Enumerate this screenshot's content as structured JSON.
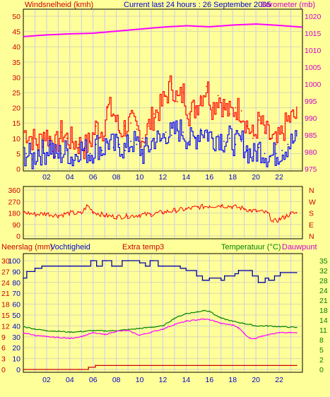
{
  "header": {
    "left_label": "Windsnelheid (kmh)",
    "center_label": "Current last 24 hours : 26 September 2005",
    "right_label": "Barometer (mb)"
  },
  "colors": {
    "background": "#ffff99",
    "plot_bg": "#ffff99",
    "grid_v": "#c8c8ff",
    "grid_h": "#d8d8b0",
    "wind_avg": "#0000ff",
    "wind_gust": "#ff0000",
    "barometer": "#ff00ff",
    "direction": "#ff0000",
    "humidity": "#0000aa",
    "temperature": "#008000",
    "dewpoint": "#ff00ff",
    "rain": "#cc0000",
    "text_red": "#cc0000",
    "text_green": "#008000",
    "text_purple": "#cc00cc",
    "text_blue": "#0000cc"
  },
  "hour_ticks": [
    "02",
    "04",
    "06",
    "08",
    "10",
    "12",
    "14",
    "16",
    "18",
    "20",
    "22"
  ],
  "chart_data": [
    {
      "type": "bar",
      "name": "wind",
      "y_left_ticks": [
        "0",
        "5",
        "10",
        "15",
        "20",
        "25",
        "30",
        "35",
        "40",
        "45",
        "50"
      ],
      "y_right_ticks": [
        "975",
        "980",
        "985",
        "990",
        "995",
        "1000",
        "1005",
        "1010",
        "1015",
        "1020"
      ],
      "xlim": [
        0,
        24
      ],
      "ylim_left": [
        0,
        50
      ],
      "ylim_right": [
        975,
        1020
      ],
      "series": [
        {
          "name": "Windsnelheid (kmh)",
          "kind": "gust",
          "x": [
            0.25,
            0.75,
            1.25,
            1.75,
            2.25,
            2.75,
            3.25,
            3.75,
            4.25,
            4.75,
            5.25,
            5.75,
            6.25,
            6.75,
            7.25,
            7.75,
            8.25,
            8.75,
            9.25,
            9.75,
            10.25,
            10.75,
            11.25,
            11.75,
            12.25,
            12.75,
            13.25,
            13.75,
            14.25,
            14.75,
            15.25,
            15.75,
            16.25,
            16.75,
            17.25,
            17.75,
            18.25,
            18.75,
            19.25,
            19.75,
            20.25,
            20.75,
            21.25,
            21.75,
            22.25,
            22.75,
            23.25
          ],
          "values": [
            12,
            10,
            8,
            12,
            10,
            7,
            12,
            10,
            9,
            8,
            7,
            9,
            14,
            12,
            20,
            18,
            12,
            14,
            15,
            13,
            10,
            14,
            18,
            20,
            24,
            28,
            22,
            25,
            18,
            20,
            24,
            27,
            20,
            24,
            20,
            18,
            20,
            19,
            14,
            10,
            16,
            12,
            10,
            8,
            12,
            16,
            17
          ]
        },
        {
          "name": "Windsnelheid (kmh)",
          "kind": "avg",
          "x": [
            0.25,
            0.75,
            1.25,
            1.75,
            2.25,
            2.75,
            3.25,
            3.75,
            4.25,
            4.75,
            5.25,
            5.75,
            6.25,
            6.75,
            7.25,
            7.75,
            8.25,
            8.75,
            9.25,
            9.75,
            10.25,
            10.75,
            11.25,
            11.75,
            12.25,
            12.75,
            13.25,
            13.75,
            14.25,
            14.75,
            15.25,
            15.75,
            16.25,
            16.75,
            17.25,
            17.75,
            18.25,
            18.75,
            19.25,
            19.75,
            20.25,
            20.75,
            21.25,
            21.75,
            22.25,
            22.75,
            23.25
          ],
          "values": [
            5,
            3,
            6,
            5,
            8,
            4,
            5,
            6,
            3,
            7,
            6,
            5,
            8,
            6,
            9,
            7,
            8,
            6,
            9,
            8,
            5,
            7,
            10,
            9,
            12,
            11,
            13,
            12,
            9,
            10,
            13,
            12,
            10,
            11,
            9,
            10,
            8,
            9,
            6,
            4,
            7,
            5,
            4,
            5,
            6,
            8,
            9
          ]
        },
        {
          "name": "Barometer (mb)",
          "kind": "pressure",
          "x": [
            0,
            2,
            4,
            6,
            8,
            10,
            12,
            14,
            16,
            18,
            20,
            22,
            24
          ],
          "values": [
            1014.0,
            1014.5,
            1014.8,
            1015.0,
            1015.6,
            1016.2,
            1016.8,
            1017.2,
            1016.9,
            1017.4,
            1017.7,
            1017.3,
            1016.8
          ]
        }
      ]
    },
    {
      "type": "line",
      "name": "wind-direction",
      "y_left_ticks": [
        "0",
        "90",
        "180",
        "270",
        "360"
      ],
      "y_right_ticks": [
        "N",
        "E",
        "S",
        "W",
        "N"
      ],
      "xlim": [
        0,
        24
      ],
      "ylim": [
        0,
        360
      ],
      "series": [
        {
          "name": "direction",
          "x": [
            0,
            1,
            2,
            3,
            4,
            5,
            5.5,
            6,
            7,
            8,
            9,
            10,
            11,
            12,
            13,
            14,
            15,
            16,
            17,
            18,
            19,
            19.5,
            20,
            21,
            21.5,
            22,
            22.5,
            23,
            23.5
          ],
          "values": [
            185,
            170,
            175,
            160,
            180,
            175,
            240,
            190,
            160,
            150,
            155,
            165,
            170,
            185,
            200,
            210,
            225,
            235,
            240,
            230,
            215,
            200,
            195,
            180,
            110,
            130,
            150,
            175,
            180
          ]
        }
      ]
    },
    {
      "type": "line",
      "name": "temp-humidity-rain",
      "header": {
        "left1": "Neerslag (mm)",
        "left2": "Vochtigheid",
        "center": "Extra temp3",
        "right1": "Temperatuur (°C)",
        "right2": "Dauwpunt"
      },
      "y_left_outer_ticks": [
        "0",
        "3",
        "6",
        "9",
        "12",
        "15",
        "18",
        "21",
        "24",
        "27",
        "30"
      ],
      "y_left_inner_ticks": [
        "0",
        "10",
        "20",
        "30",
        "40",
        "50",
        "60",
        "70",
        "80",
        "90",
        "100"
      ],
      "y_right_ticks": [
        "0",
        "2",
        "5",
        "8",
        "11",
        "14",
        "18",
        "21",
        "24",
        "28",
        "32",
        "35"
      ],
      "xlim": [
        0,
        24
      ],
      "ylim_humidity": [
        0,
        100
      ],
      "ylim_temp": [
        0,
        35
      ],
      "series": [
        {
          "name": "Vochtigheid",
          "kind": "humidity",
          "x": [
            0,
            0.3,
            1,
            1.6,
            4,
            5.3,
            5.8,
            6.0,
            6.3,
            6.8,
            7.1,
            7.6,
            8.5,
            9.0,
            10.0,
            10.5,
            10.9,
            11.1,
            11.6,
            13.0,
            13.5,
            14.0,
            14.9,
            15.4,
            15.8,
            16.0,
            17.0,
            17.3,
            17.6,
            18.2,
            18.5,
            19.5,
            19.7,
            20.2,
            20.8,
            21.1,
            21.6,
            22.1,
            23.5
          ],
          "values": [
            84,
            90,
            93,
            95,
            95,
            95,
            100,
            100,
            95,
            100,
            100,
            95,
            100,
            100,
            98,
            95,
            100,
            100,
            95,
            95,
            93,
            91,
            86,
            82,
            82,
            84,
            82,
            86,
            86,
            88,
            91,
            91,
            86,
            80,
            84,
            82,
            86,
            89,
            89
          ]
        },
        {
          "name": "Temperatuur (°C)",
          "kind": "temperature",
          "x": [
            0,
            1,
            2,
            3,
            4,
            5,
            6,
            7,
            8,
            9,
            10,
            11,
            12,
            13,
            14,
            15,
            15.5,
            16,
            16.5,
            17,
            18,
            19,
            20,
            21,
            22,
            23.5
          ],
          "values": [
            13.8,
            13.0,
            12.5,
            12.3,
            12.0,
            12.2,
            12.5,
            12.4,
            12.5,
            12.8,
            13.2,
            13.6,
            14.0,
            16.5,
            18.0,
            18.5,
            19.0,
            18.8,
            17.5,
            16.5,
            15.5,
            14.8,
            14.0,
            14.0,
            13.8,
            13.5
          ]
        },
        {
          "name": "Dauwpunt",
          "kind": "dewpoint",
          "x": [
            0,
            1,
            2,
            3,
            4,
            5,
            6,
            7,
            8,
            9,
            10,
            11,
            12,
            13,
            14,
            15,
            15.5,
            16,
            16.5,
            17,
            18,
            18.5,
            19,
            19.5,
            20,
            20.5,
            21,
            22,
            23.5
          ],
          "values": [
            11.8,
            11.0,
            10.5,
            10.3,
            10.0,
            10.6,
            11.8,
            11.2,
            12.3,
            12.5,
            11.0,
            12.0,
            13.0,
            14.5,
            15.5,
            16.0,
            16.2,
            16.0,
            15.5,
            14.8,
            14.3,
            13.5,
            11.5,
            10.0,
            10.0,
            10.8,
            11.2,
            11.8,
            11.8
          ]
        },
        {
          "name": "Neerslag (mm)",
          "kind": "rain",
          "x": [
            0,
            4.8,
            5.6,
            6.2,
            23.5
          ],
          "values": [
            0,
            0,
            0.6,
            1.1,
            1.1
          ]
        }
      ]
    }
  ]
}
